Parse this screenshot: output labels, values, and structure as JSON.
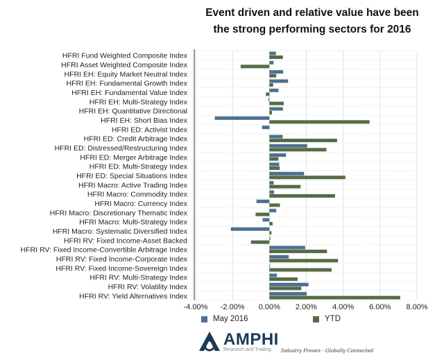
{
  "chart_data": {
    "type": "bar",
    "orientation": "horizontal",
    "title": "Event driven and relative value have been the strong performing sectors for 2016",
    "title_lines": [
      "Event driven and relative value have been",
      "the strong performing sectors for 2016"
    ],
    "categories": [
      "HFRI Fund Weighted Composite Index",
      "HFRI Asset Weighted Composite Index",
      "HFRI EH: Equity Market Neutral Index",
      "HFRI EH: Fundamental Growth Index",
      "HFRI EH: Fundamental Value Index",
      "HFRI EH: Multi-Strategy Index",
      "HFRI EH: Quantitative Directional",
      "HFRI EH: Short Bias Index",
      "HFRI ED: Activist Index",
      "HFRI ED: Credit Arbitrage Index",
      "HFRI ED: Distressed/Restructuring Index",
      "HFRI ED: Merger Arbitrage Index",
      "HFRI ED: Multi-Strategy Index",
      "HFRI ED: Special Situations Index",
      "HFRI Macro: Active Trading Index",
      "HFRI Macro: Commodity Index",
      "HFRI Macro: Currency Index",
      "HFRI Macro: Discretionary Thematic Index",
      "HFRI Macro: Multi-Strategy Index",
      "HFRI Macro: Systematic Diversified Index",
      "HFRI RV: Fixed Income-Asset Backed",
      "HFRI RV: Fixed Income-Convertible Arbitrage Index",
      "HFRI RV: Fixed Income-Corporate Index",
      "HFRI RV: Fixed Income-Sovereign Index",
      "HFRI RV: Multi-Strategy Index",
      "HFRI RV: Volatility Index",
      "HFRI RV: Yield Alternatives Index"
    ],
    "series": [
      {
        "name": "May 2016",
        "color": "#4f6f8f",
        "values": [
          0.35,
          0.23,
          0.75,
          1.01,
          0.49,
          -0.05,
          0.73,
          -2.96,
          -0.4,
          0.72,
          2.05,
          0.9,
          0.53,
          1.88,
          0.23,
          0.25,
          -0.7,
          0.37,
          -0.37,
          -2.09,
          0.05,
          1.94,
          1.05,
          0.0,
          0.41,
          2.12,
          2.02
        ]
      },
      {
        "name": "YTD",
        "color": "#556b45",
        "values": [
          0.73,
          -1.56,
          0.37,
          0.2,
          -0.19,
          0.78,
          0.14,
          5.43,
          null,
          3.67,
          3.09,
          0.49,
          0.56,
          4.12,
          1.69,
          3.56,
          0.57,
          -0.75,
          0.17,
          0.11,
          -1.0,
          3.12,
          3.72,
          3.37,
          1.53,
          1.73,
          7.09
        ]
      }
    ],
    "xlim": [
      -4,
      8
    ],
    "xticks": [
      "-4.00%",
      "-2.00%",
      "0.00%",
      "2.00%",
      "4.00%",
      "6.00%",
      "8.00%"
    ],
    "unit": "%",
    "grid": true,
    "legend_position": "bottom"
  },
  "footer": {
    "brand": "AMPHI",
    "brand_sub": "Research and Trading",
    "tagline": "Industry Proven - Globally Connected"
  }
}
